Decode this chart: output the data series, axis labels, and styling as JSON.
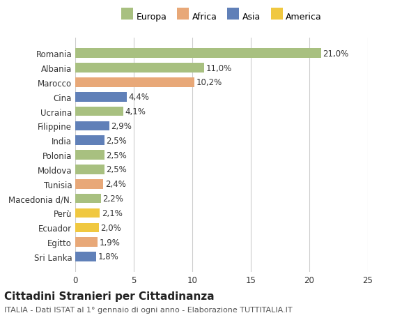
{
  "countries": [
    "Romania",
    "Albania",
    "Marocco",
    "Cina",
    "Ucraina",
    "Filippine",
    "India",
    "Polonia",
    "Moldova",
    "Tunisia",
    "Macedonia d/N.",
    "Perù",
    "Ecuador",
    "Egitto",
    "Sri Lanka"
  ],
  "values": [
    21.0,
    11.0,
    10.2,
    4.4,
    4.1,
    2.9,
    2.5,
    2.5,
    2.5,
    2.4,
    2.2,
    2.1,
    2.0,
    1.9,
    1.8
  ],
  "labels": [
    "21,0%",
    "11,0%",
    "10,2%",
    "4,4%",
    "4,1%",
    "2,9%",
    "2,5%",
    "2,5%",
    "2,5%",
    "2,4%",
    "2,2%",
    "2,1%",
    "2,0%",
    "1,9%",
    "1,8%"
  ],
  "continents": [
    "Europa",
    "Europa",
    "Africa",
    "Asia",
    "Europa",
    "Asia",
    "Asia",
    "Europa",
    "Europa",
    "Africa",
    "Europa",
    "America",
    "America",
    "Africa",
    "Asia"
  ],
  "colors": {
    "Europa": "#a8c080",
    "Africa": "#e8a878",
    "Asia": "#6080b8",
    "America": "#f0c840"
  },
  "legend_order": [
    "Europa",
    "Africa",
    "Asia",
    "America"
  ],
  "xlim": [
    0,
    25
  ],
  "xticks": [
    0,
    5,
    10,
    15,
    20,
    25
  ],
  "title": "Cittadini Stranieri per Cittadinanza",
  "subtitle": "ITALIA - Dati ISTAT al 1° gennaio di ogni anno - Elaborazione TUTTITALIA.IT",
  "bg_color": "#ffffff",
  "grid_color": "#cccccc",
  "bar_height": 0.65,
  "label_fontsize": 8.5,
  "tick_fontsize": 8.5,
  "title_fontsize": 11,
  "subtitle_fontsize": 8
}
